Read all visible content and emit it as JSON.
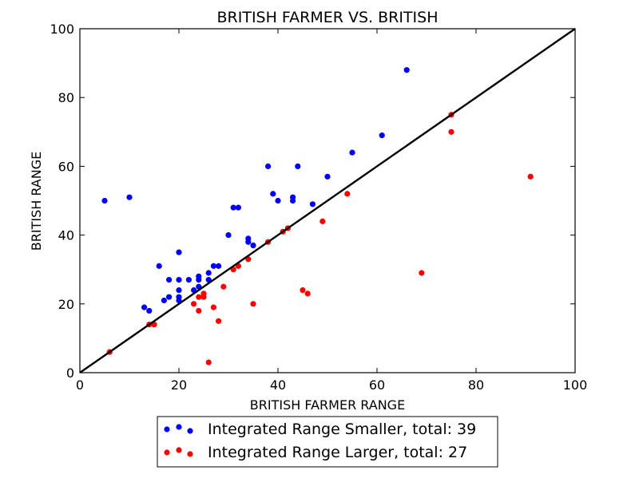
{
  "chart_data": {
    "type": "scatter",
    "title": "BRITISH FARMER VS. BRITISH",
    "xlabel": "BRITISH FARMER RANGE",
    "ylabel": "BRITISH RANGE",
    "xlim": [
      0,
      100
    ],
    "ylim": [
      0,
      100
    ],
    "xticks": [
      0,
      20,
      40,
      60,
      80,
      100
    ],
    "yticks": [
      0,
      20,
      40,
      60,
      80,
      100
    ],
    "grid": false,
    "legend_placement": "bottom-center",
    "reference_line": {
      "x": [
        0,
        100
      ],
      "y": [
        0,
        100
      ],
      "color": "#000000"
    },
    "series": [
      {
        "name": "Integrated Range Smaller, total: 39",
        "color": "#0000ff",
        "points": [
          [
            5,
            50
          ],
          [
            10,
            51
          ],
          [
            13,
            19
          ],
          [
            14,
            18
          ],
          [
            16,
            31
          ],
          [
            17,
            21
          ],
          [
            18,
            27
          ],
          [
            18,
            22
          ],
          [
            20,
            35
          ],
          [
            20,
            27
          ],
          [
            20,
            24
          ],
          [
            20,
            22
          ],
          [
            20,
            21
          ],
          [
            22,
            27
          ],
          [
            23,
            24
          ],
          [
            24,
            28
          ],
          [
            24,
            27
          ],
          [
            24,
            25
          ],
          [
            26,
            29
          ],
          [
            26,
            27
          ],
          [
            27,
            31
          ],
          [
            28,
            31
          ],
          [
            30,
            40
          ],
          [
            31,
            48
          ],
          [
            32,
            48
          ],
          [
            34,
            39
          ],
          [
            34,
            38
          ],
          [
            35,
            37
          ],
          [
            38,
            60
          ],
          [
            39,
            52
          ],
          [
            40,
            50
          ],
          [
            43,
            51
          ],
          [
            43,
            50
          ],
          [
            44,
            60
          ],
          [
            47,
            49
          ],
          [
            50,
            57
          ],
          [
            55,
            64
          ],
          [
            61,
            69
          ],
          [
            66,
            88
          ]
        ]
      },
      {
        "name": "Integrated Range Larger, total: 27",
        "color": "#ff0000",
        "points": [
          [
            6,
            6
          ],
          [
            14,
            14
          ],
          [
            15,
            14
          ],
          [
            23,
            20
          ],
          [
            24,
            22
          ],
          [
            24,
            18
          ],
          [
            25,
            23
          ],
          [
            25,
            22
          ],
          [
            26,
            3
          ],
          [
            27,
            19
          ],
          [
            28,
            15
          ],
          [
            29,
            25
          ],
          [
            31,
            30
          ],
          [
            32,
            31
          ],
          [
            34,
            33
          ],
          [
            35,
            20
          ],
          [
            38,
            38
          ],
          [
            41,
            41
          ],
          [
            42,
            42
          ],
          [
            45,
            24
          ],
          [
            46,
            23
          ],
          [
            49,
            44
          ],
          [
            54,
            52
          ],
          [
            69,
            29
          ],
          [
            75,
            75
          ],
          [
            75,
            70
          ],
          [
            91,
            57
          ]
        ]
      }
    ]
  }
}
